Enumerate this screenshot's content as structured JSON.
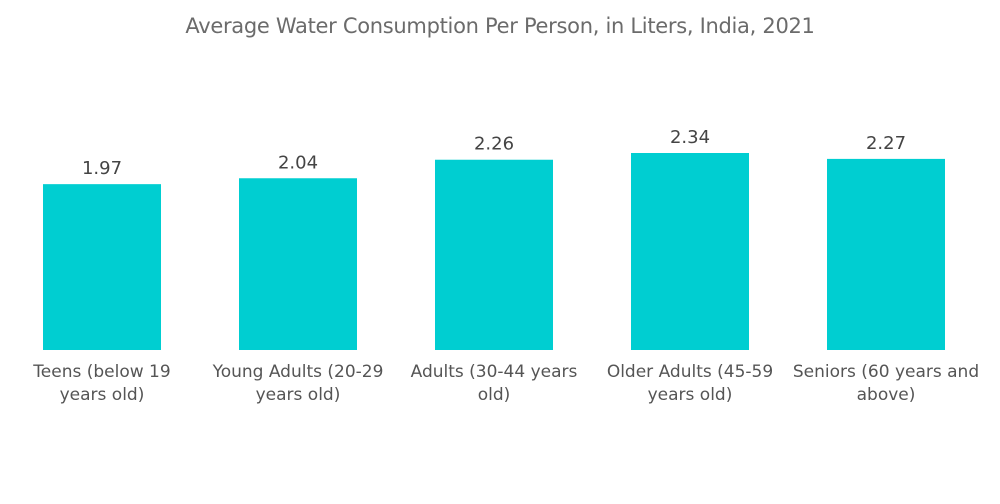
{
  "chart_data": {
    "type": "bar",
    "title": "Average Water Consumption Per Person, in Liters, India, 2021",
    "xlabel": "",
    "ylabel": "",
    "categories": [
      "Teens (below 19 years old)",
      "Young Adults (20-29 years old)",
      "Adults (30-44 years old)",
      "Older Adults (45-59 years old)",
      "Seniors (60 years and above)"
    ],
    "category_lines": [
      [
        "Teens (below 19",
        "years old)"
      ],
      [
        "Young Adults (20-29",
        "years old)"
      ],
      [
        "Adults (30-44 years",
        "old)"
      ],
      [
        "Older Adults (45-59",
        "years old)"
      ],
      [
        "Seniors (60 years and",
        "above)"
      ]
    ],
    "values": [
      1.97,
      2.04,
      2.26,
      2.34,
      2.27
    ],
    "value_labels": [
      "1.97",
      "2.04",
      "2.26",
      "2.34",
      "2.27"
    ],
    "ylim": [
      0,
      2.34
    ],
    "grid": false,
    "legend": "none",
    "bar_color": "#00CED1"
  }
}
